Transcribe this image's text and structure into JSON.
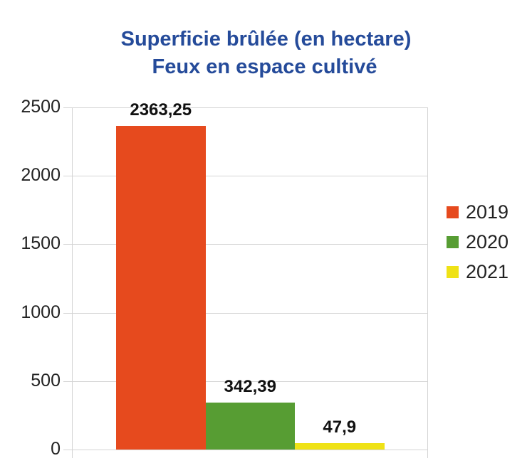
{
  "chart_data": {
    "type": "bar",
    "title": "Superficie brûlée (en hectare)",
    "subtitle": "Feux en espace cultivé",
    "categories": [
      ""
    ],
    "series": [
      {
        "name": "2019",
        "values": [
          2363.25
        ],
        "color": "#e64a1e",
        "label": "2363,25"
      },
      {
        "name": "2020",
        "values": [
          342.39
        ],
        "color": "#579d33",
        "label": "342,39"
      },
      {
        "name": "2021",
        "values": [
          47.9
        ],
        "color": "#efe216",
        "label": "47,9"
      }
    ],
    "xlabel": "",
    "ylabel": "",
    "ylim": [
      0,
      2500
    ],
    "yticks": [
      "0",
      "500",
      "1000",
      "1500",
      "2000",
      "2500"
    ],
    "grid": true,
    "legend_position": "right"
  },
  "title_line1": "Superficie brûlée (en hectare)",
  "title_line2": "Feux en espace cultivé"
}
